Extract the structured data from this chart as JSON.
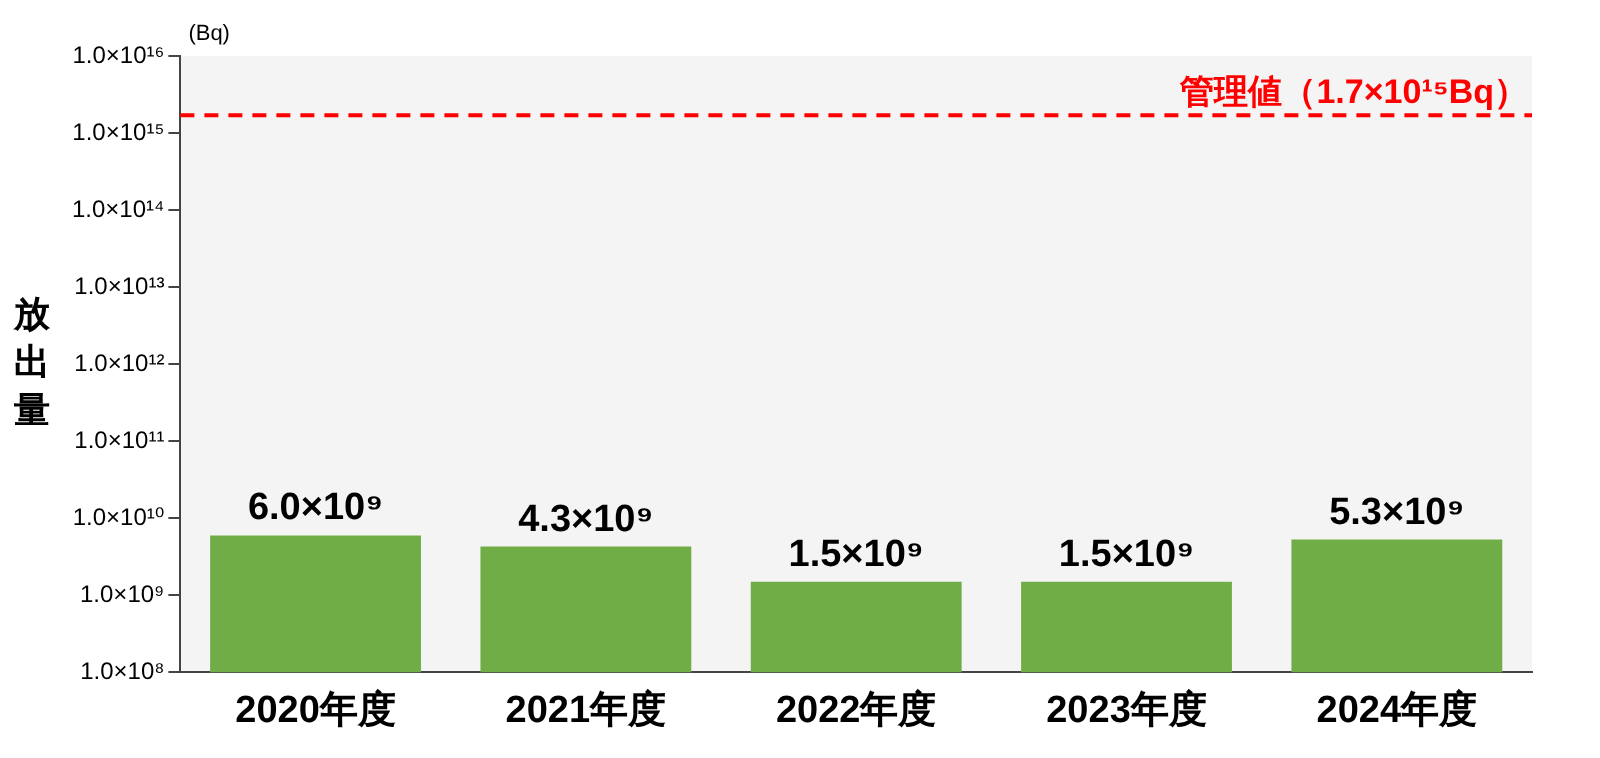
{
  "chart_data": {
    "type": "bar",
    "ylabel": "放出量",
    "annotations": [
      "(Bq)"
    ],
    "categories": [
      "2020年度",
      "2021年度",
      "2022年度",
      "2023年度",
      "2024年度"
    ],
    "values": [
      6000000000.0,
      4300000000.0,
      1500000000.0,
      1500000000.0,
      5300000000.0
    ],
    "color": "#70ad47",
    "value_labels": [
      "6.0×10⁹",
      "4.3×10⁹",
      "1.5×10⁹",
      "1.5×10⁹",
      "5.3×10⁹"
    ],
    "log": true,
    "ylim": [
      100000000.0,
      1e+16
    ],
    "yticks": [
      {
        "value": 100000000.0,
        "label": "1.0×10⁸"
      },
      {
        "value": 1000000000.0,
        "label": "1.0×10⁹"
      },
      {
        "value": 10000000000.0,
        "label": "1.0×10¹⁰"
      },
      {
        "value": 100000000000.0,
        "label": "1.0×10¹¹"
      },
      {
        "value": 1000000000000.0,
        "label": "1.0×10¹²"
      },
      {
        "value": 10000000000000.0,
        "label": "1.0×10¹³"
      },
      {
        "value": 100000000000000.0,
        "label": "1.0×10¹⁴"
      },
      {
        "value": 1000000000000000.0,
        "label": "1.0×10¹⁵"
      },
      {
        "value": 1e+16,
        "label": "1.0×10¹⁶"
      }
    ],
    "ref_lines": [
      {
        "axis": "y",
        "value": 1700000000000000.0,
        "label": "管理値（1.7×10¹⁵Bq）",
        "color": "#ff0000",
        "line_style": "dashed"
      }
    ],
    "grid": false,
    "legend": false
  }
}
